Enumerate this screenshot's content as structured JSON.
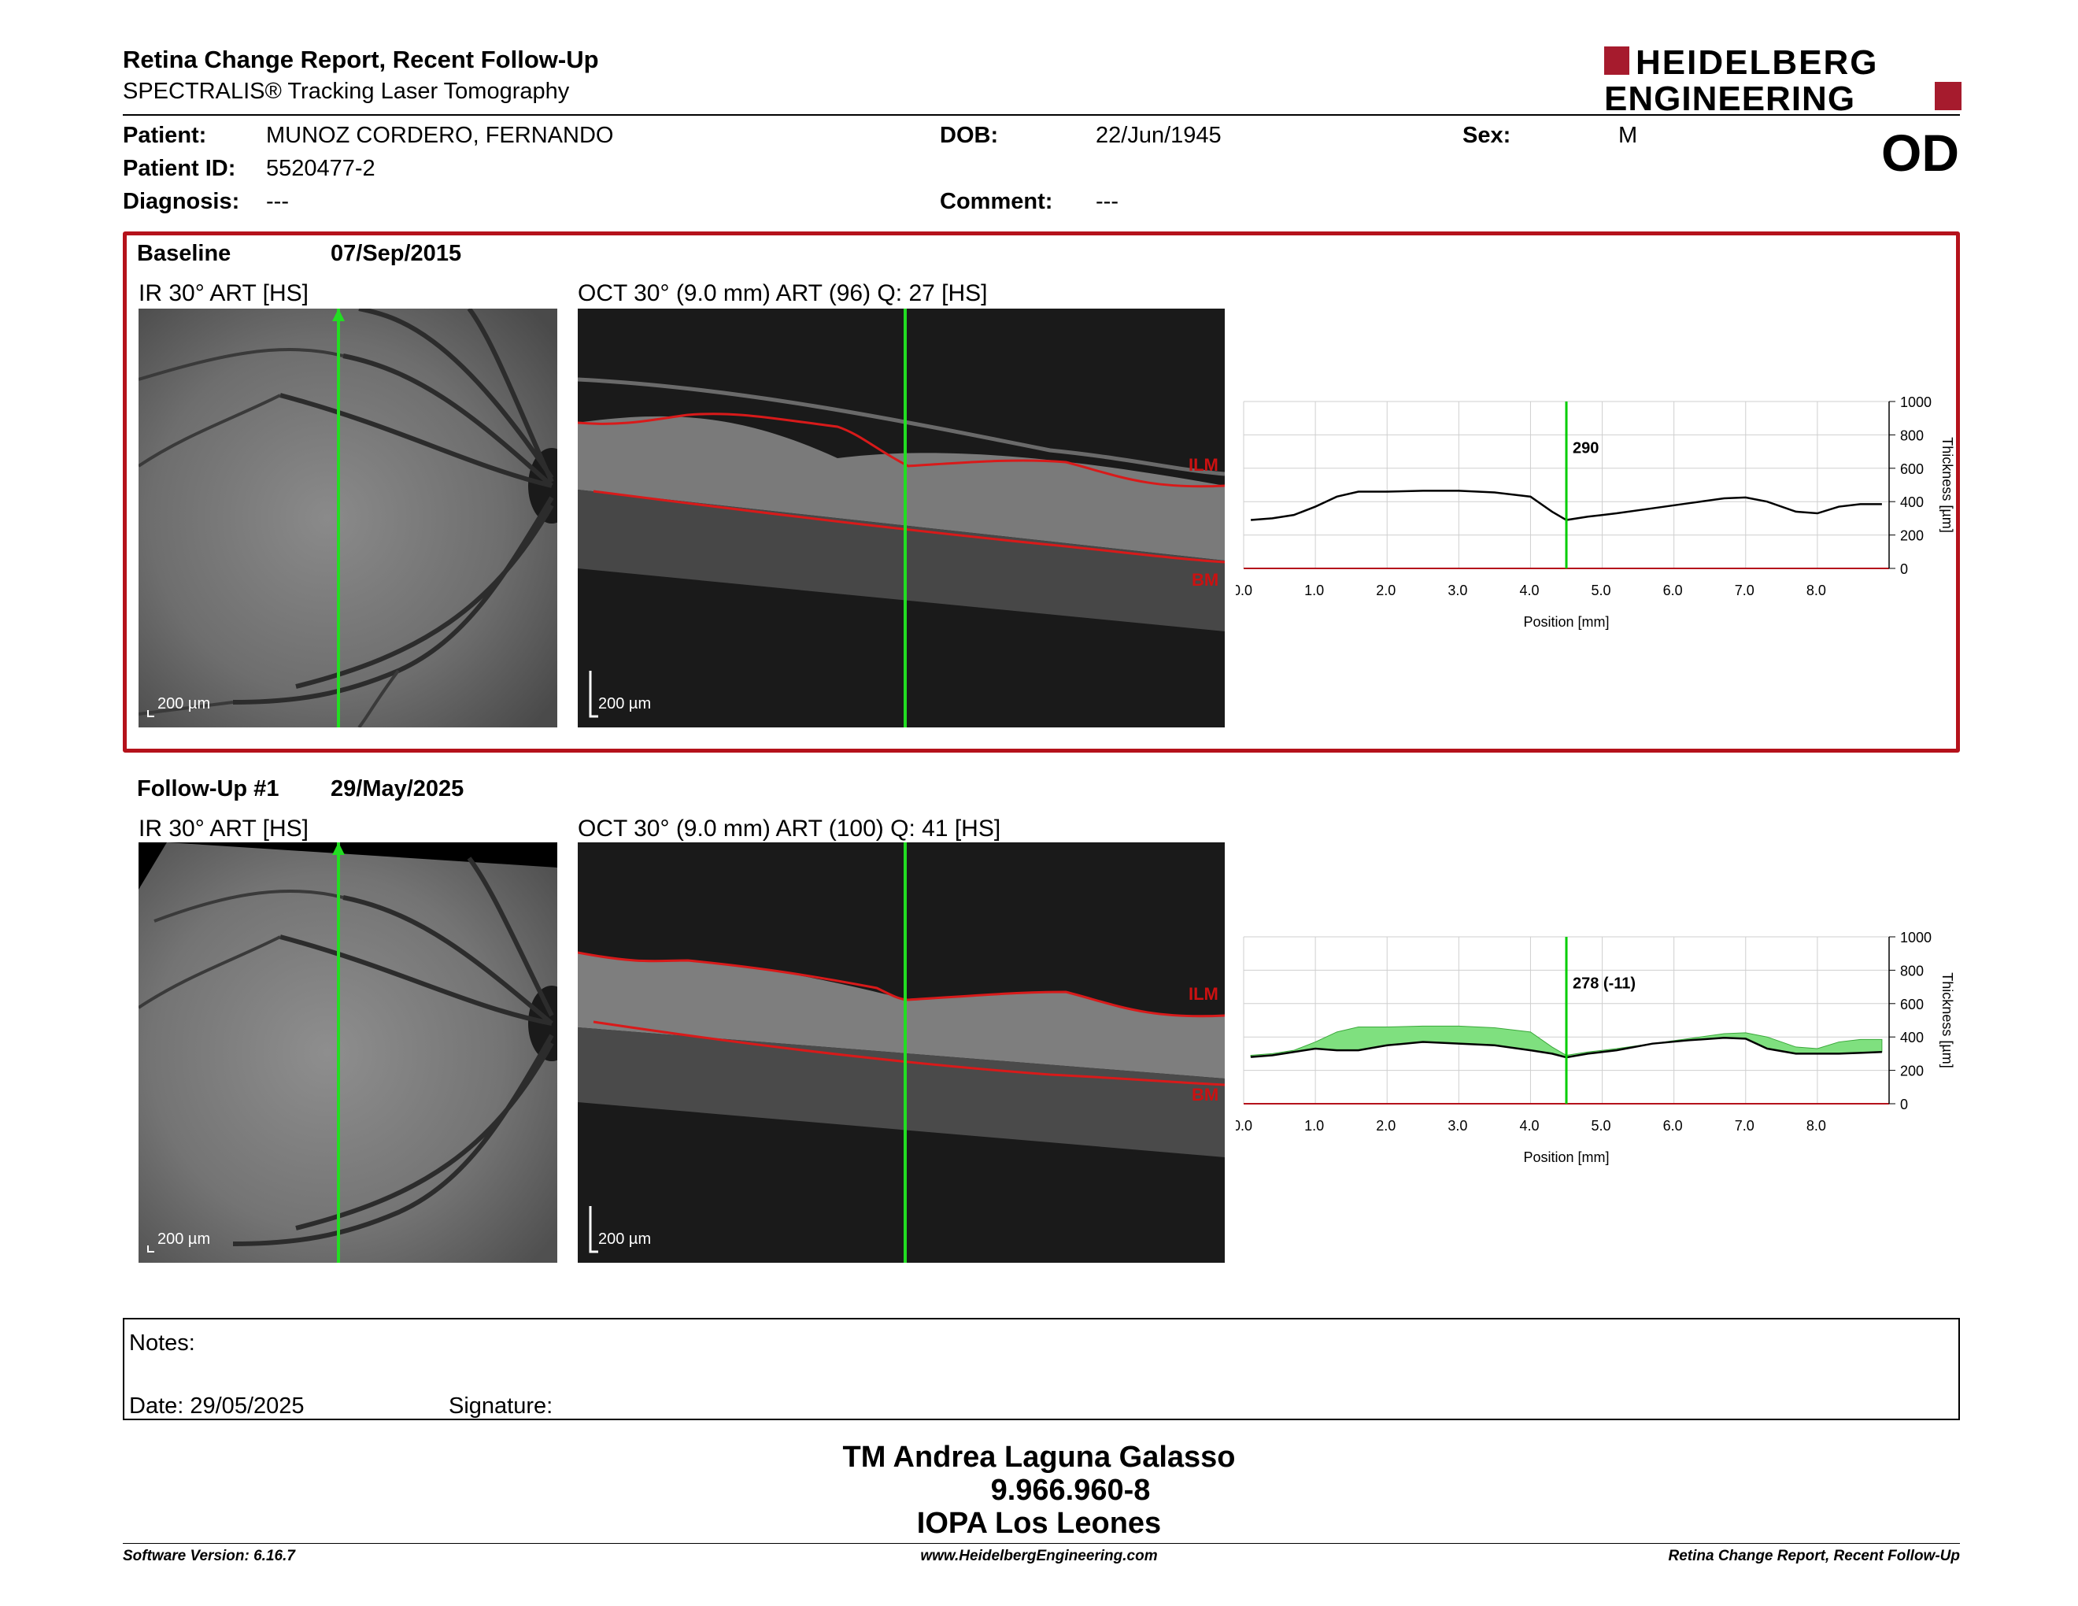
{
  "header": {
    "title": "Retina Change Report, Recent Follow-Up",
    "subtitle": "SPECTRALIS® Tracking Laser Tomography",
    "logo_line1": "HEIDELBERG",
    "logo_line2": "ENGINEERING",
    "eye": "OD"
  },
  "patient": {
    "patient_label": "Patient:",
    "patient_value": "MUNOZ CORDERO, FERNANDO",
    "id_label": "Patient ID:",
    "id_value": "5520477-2",
    "diagnosis_label": "Diagnosis:",
    "diagnosis_value": "---",
    "dob_label": "DOB:",
    "dob_value": "22/Jun/1945",
    "comment_label": "Comment:",
    "comment_value": "---",
    "sex_label": "Sex:",
    "sex_value": "M"
  },
  "baseline": {
    "label": "Baseline",
    "date": "07/Sep/2015",
    "ir_caption": "IR 30° ART [HS]",
    "oct_caption": "OCT 30° (9.0 mm) ART (96) Q: 27 [HS]",
    "scale_ir": "200 µm",
    "scale_oct": "200 µm",
    "ilm": "ILM",
    "bm": "BM"
  },
  "followup": {
    "label": "Follow-Up #1",
    "date": "29/May/2025",
    "ir_caption": "IR 30° ART [HS]",
    "oct_caption": "OCT 30° (9.0 mm) ART (100) Q: 41 [HS]",
    "scale_ir": "200 µm",
    "scale_oct": "200 µm",
    "ilm": "ILM",
    "bm": "BM"
  },
  "chart_data": [
    {
      "type": "line",
      "xlabel": "Position [mm]",
      "ylabel": "Thickness [µm]",
      "xlim": [
        0,
        9
      ],
      "ylim": [
        0,
        1000
      ],
      "x_ticks": [
        "0.0",
        "1.0",
        "2.0",
        "3.0",
        "4.0",
        "5.0",
        "6.0",
        "7.0",
        "8.0"
      ],
      "y_ticks": [
        "1000",
        "800",
        "600",
        "400",
        "200",
        "0"
      ],
      "cursor_x": 4.5,
      "cursor_label": "290",
      "series": [
        {
          "x": [
            0.1,
            0.4,
            0.7,
            1.0,
            1.3,
            1.6,
            2.0,
            2.5,
            3.0,
            3.5,
            4.0,
            4.3,
            4.5,
            4.8,
            5.2,
            5.7,
            6.2,
            6.7,
            7.0,
            7.3,
            7.7,
            8.0,
            8.3,
            8.6,
            8.9
          ],
          "values": [
            290,
            300,
            320,
            370,
            430,
            460,
            460,
            465,
            465,
            455,
            430,
            340,
            290,
            310,
            330,
            360,
            390,
            420,
            425,
            400,
            340,
            330,
            370,
            385,
            385
          ]
        }
      ],
      "color": "#000000",
      "cursor_color": "#00cc00"
    },
    {
      "type": "area",
      "xlabel": "Position [mm]",
      "ylabel": "Thickness [µm]",
      "xlim": [
        0,
        9
      ],
      "ylim": [
        0,
        1000
      ],
      "x_ticks": [
        "0.0",
        "1.0",
        "2.0",
        "3.0",
        "4.0",
        "5.0",
        "6.0",
        "7.0",
        "8.0"
      ],
      "y_ticks": [
        "1000",
        "800",
        "600",
        "400",
        "200",
        "0"
      ],
      "cursor_x": 4.5,
      "cursor_label": "278 (-11)",
      "series": [
        {
          "x": [
            0.1,
            0.4,
            0.7,
            1.0,
            1.3,
            1.6,
            2.0,
            2.5,
            3.0,
            3.5,
            4.0,
            4.3,
            4.5,
            4.8,
            5.2,
            5.7,
            6.2,
            6.7,
            7.0,
            7.3,
            7.7,
            8.0,
            8.3,
            8.6,
            8.9
          ],
          "values": [
            290,
            300,
            320,
            370,
            430,
            460,
            460,
            465,
            465,
            455,
            430,
            340,
            290,
            310,
            330,
            360,
            390,
            420,
            425,
            400,
            340,
            330,
            370,
            385,
            385
          ]
        },
        {
          "x": [
            0.1,
            0.4,
            0.7,
            1.0,
            1.3,
            1.6,
            2.0,
            2.5,
            3.0,
            3.5,
            4.0,
            4.3,
            4.5,
            4.8,
            5.2,
            5.7,
            6.2,
            6.7,
            7.0,
            7.3,
            7.7,
            8.0,
            8.3,
            8.6,
            8.9
          ],
          "values": [
            280,
            290,
            310,
            330,
            320,
            320,
            350,
            370,
            360,
            350,
            320,
            300,
            278,
            300,
            320,
            360,
            380,
            395,
            390,
            330,
            300,
            300,
            300,
            305,
            310
          ]
        }
      ],
      "color": "#000000",
      "fill_color": "#7fe07f",
      "cursor_color": "#00cc00"
    }
  ],
  "notes": {
    "notes_label": "Notes:",
    "date_label": "Date: 29/05/2025",
    "signature_label": "Signature:"
  },
  "signature": {
    "line1": "TM Andrea Laguna Galasso",
    "line2": "9.966.960-8",
    "line3": "IOPA Los Leones"
  },
  "footer": {
    "left": "Software Version: 6.16.7",
    "center": "www.HeidelbergEngineering.com",
    "right": "Retina Change Report, Recent Follow-Up"
  }
}
